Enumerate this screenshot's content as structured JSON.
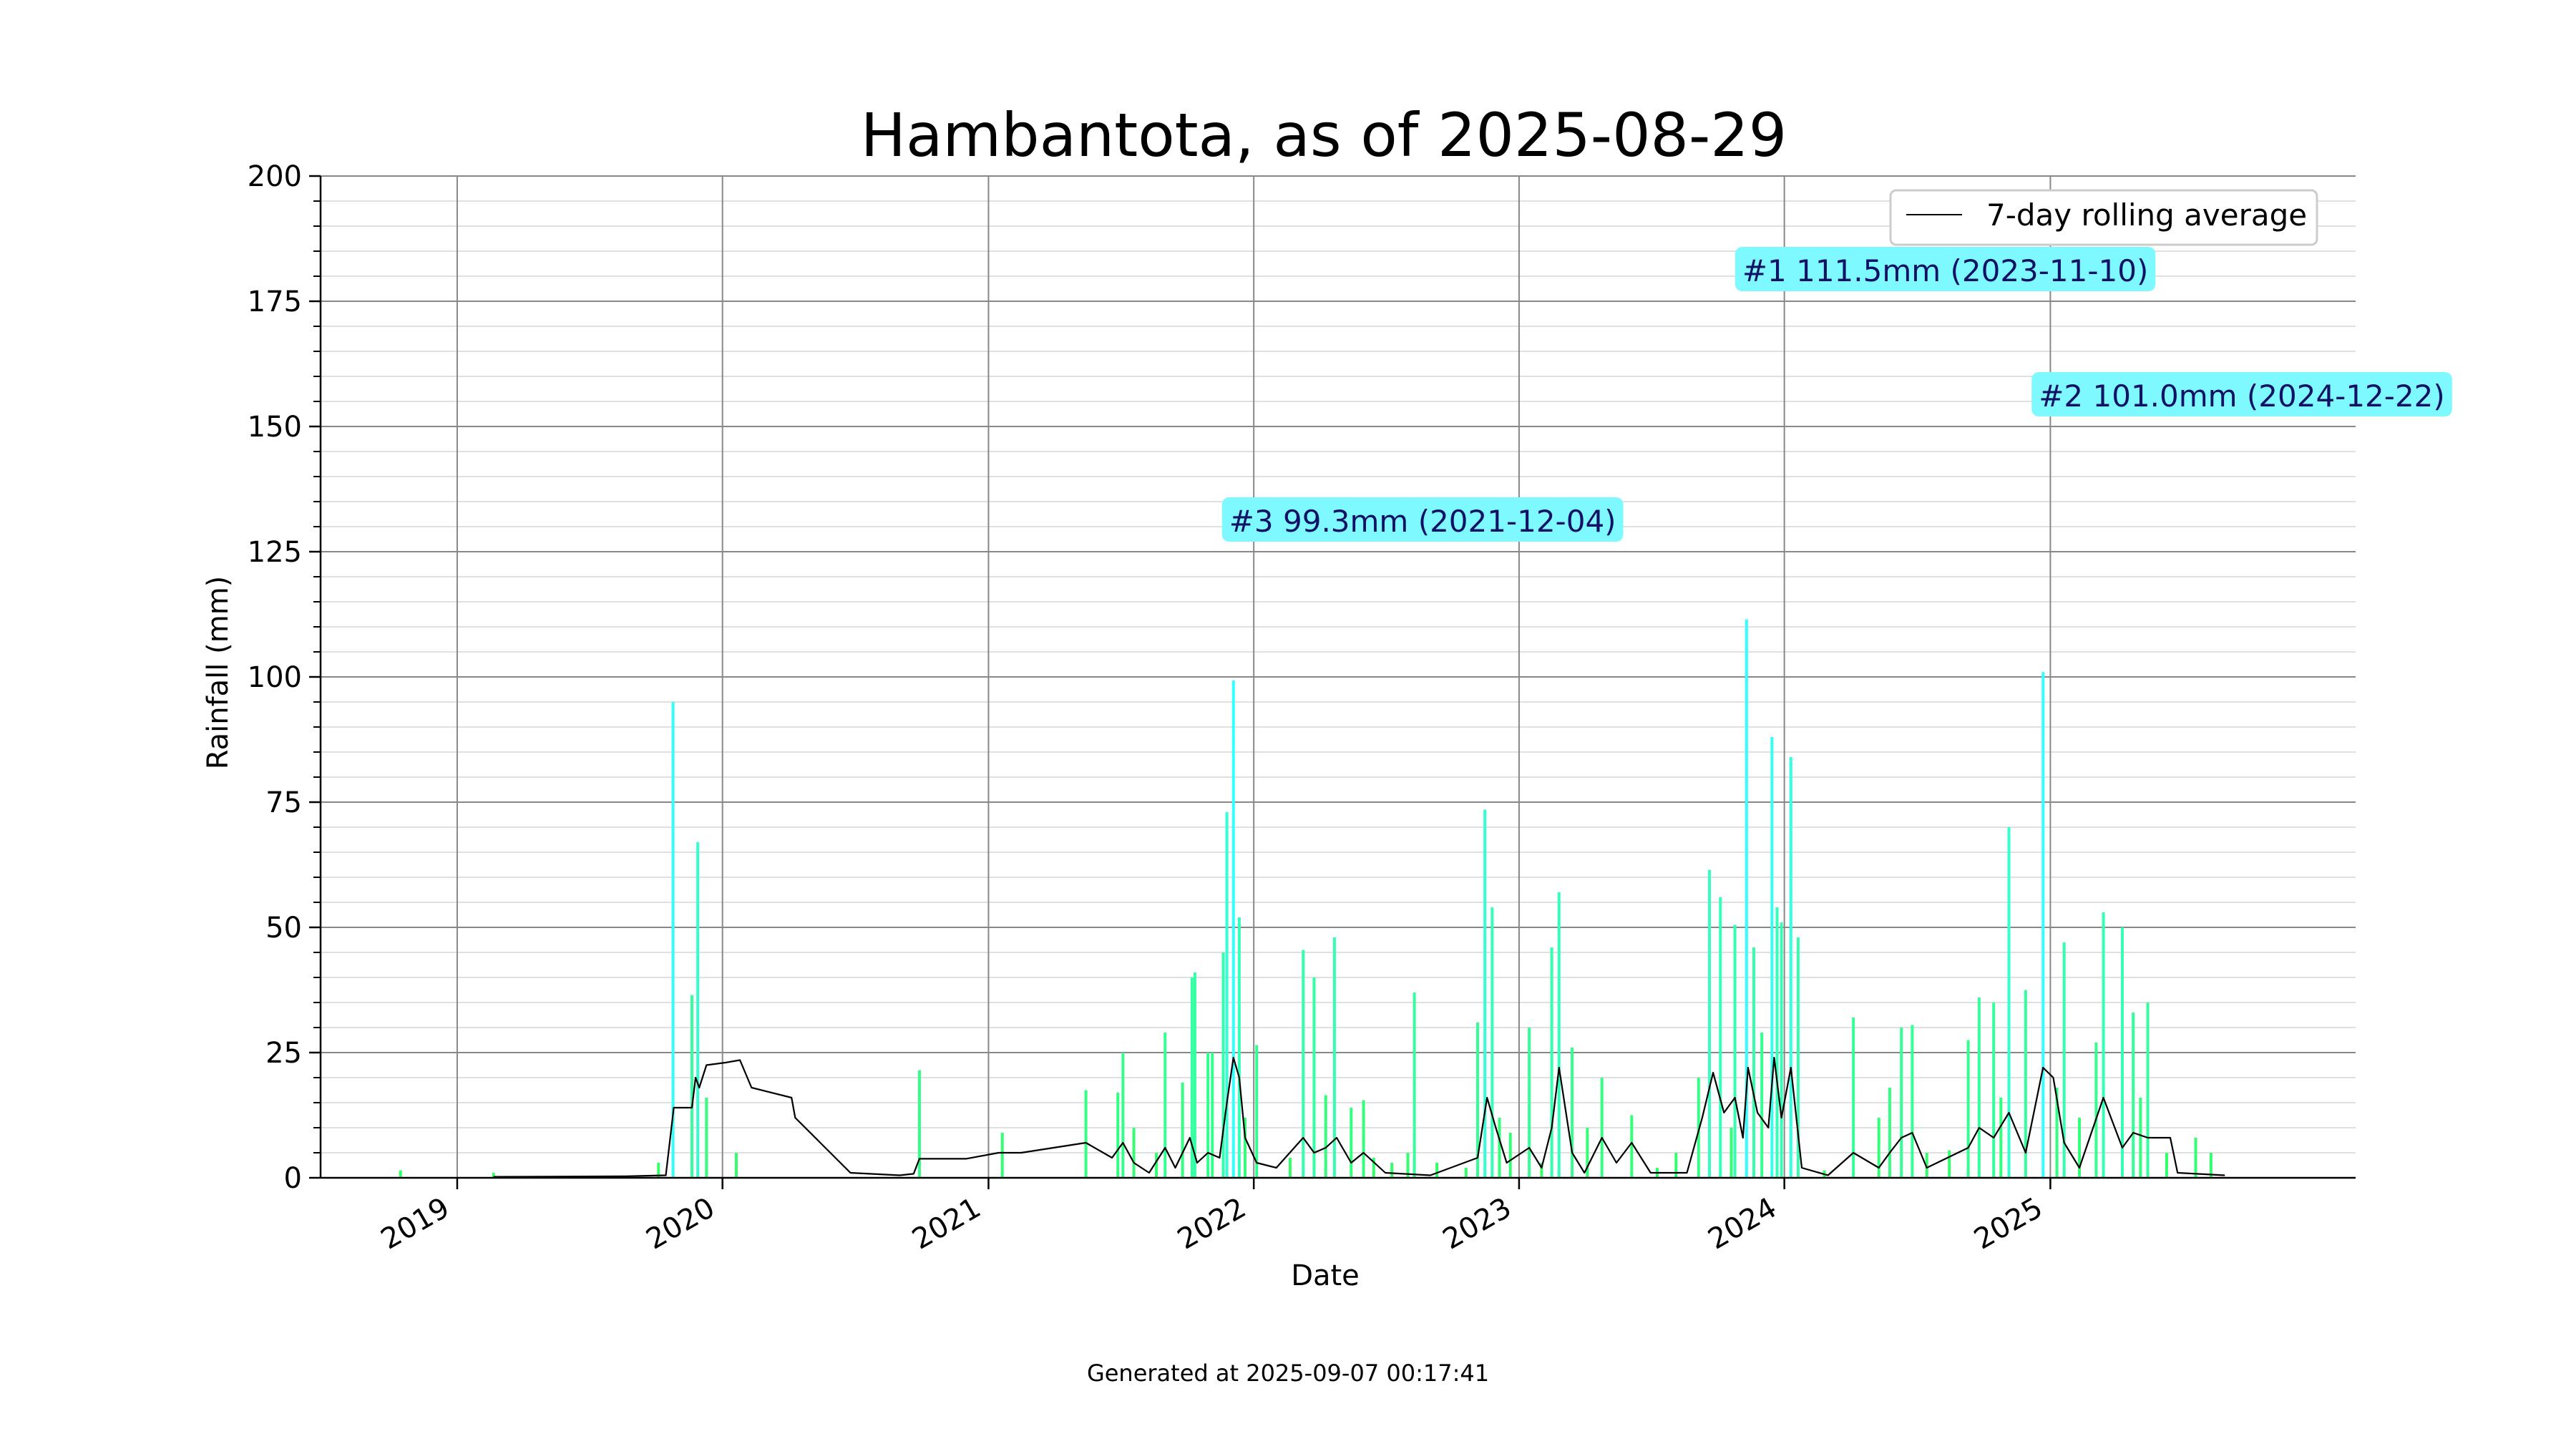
{
  "footer": {
    "text": "Generated at 2025-09-07 00:17:41"
  },
  "chart_data": {
    "type": "bar",
    "title": "Hambantota, as of 2025-08-29",
    "xlabel": "Date",
    "ylabel": "Rainfall (mm)",
    "ylim": [
      0,
      200
    ],
    "xlim": [
      "2018-06-27",
      "2026-02-25"
    ],
    "yticks": [
      0,
      25,
      50,
      75,
      100,
      125,
      150,
      175,
      200
    ],
    "xticks": [
      "2019-01-01",
      "2020-01-01",
      "2021-01-01",
      "2022-01-01",
      "2023-01-01",
      "2024-01-01",
      "2025-01-01"
    ],
    "xtick_labels": [
      "2019",
      "2020",
      "2021",
      "2022",
      "2023",
      "2024",
      "2025"
    ],
    "grid": true,
    "legend": {
      "placement": "top-right",
      "entries": [
        "7-day rolling average"
      ]
    },
    "colors": {
      "bar_low": "#33ff66",
      "bar_high": "#33ffff",
      "rolling": "#000000",
      "annotation_bg": "#7df9ff",
      "annotation_text": "#111166",
      "grid_major": "#888888",
      "grid_minor": "#e0e0e0"
    },
    "daily_rainfall": [
      [
        "2018-10-15",
        1.5
      ],
      [
        "2019-02-20",
        1.0
      ],
      [
        "2019-10-05",
        3.0
      ],
      [
        "2019-10-25",
        95.0
      ],
      [
        "2019-11-20",
        36.5
      ],
      [
        "2019-11-28",
        67.0
      ],
      [
        "2019-12-10",
        16.0
      ],
      [
        "2020-01-20",
        5.0
      ],
      [
        "2020-09-28",
        21.5
      ],
      [
        "2021-01-20",
        9.0
      ],
      [
        "2021-05-15",
        17.5
      ],
      [
        "2021-06-28",
        17.0
      ],
      [
        "2021-07-05",
        25.0
      ],
      [
        "2021-07-20",
        10.0
      ],
      [
        "2021-08-20",
        5.0
      ],
      [
        "2021-09-01",
        29.0
      ],
      [
        "2021-09-25",
        19.0
      ],
      [
        "2021-10-08",
        40.0
      ],
      [
        "2021-10-12",
        41.0
      ],
      [
        "2021-10-30",
        25.0
      ],
      [
        "2021-11-05",
        25.0
      ],
      [
        "2021-11-20",
        45.0
      ],
      [
        "2021-11-25",
        73.0
      ],
      [
        "2021-12-04",
        99.3
      ],
      [
        "2021-12-12",
        52.0
      ],
      [
        "2021-12-20",
        12.0
      ],
      [
        "2022-01-05",
        26.5
      ],
      [
        "2022-02-20",
        4.0
      ],
      [
        "2022-03-10",
        45.5
      ],
      [
        "2022-03-25",
        40.0
      ],
      [
        "2022-04-10",
        16.5
      ],
      [
        "2022-04-22",
        48.0
      ],
      [
        "2022-05-15",
        14.0
      ],
      [
        "2022-06-01",
        15.5
      ],
      [
        "2022-06-15",
        4.0
      ],
      [
        "2022-07-10",
        3.0
      ],
      [
        "2022-08-01",
        5.0
      ],
      [
        "2022-08-10",
        37.0
      ],
      [
        "2022-09-10",
        3.0
      ],
      [
        "2022-10-20",
        2.0
      ],
      [
        "2022-11-05",
        31.0
      ],
      [
        "2022-11-15",
        73.5
      ],
      [
        "2022-11-25",
        54.0
      ],
      [
        "2022-12-05",
        12.0
      ],
      [
        "2022-12-20",
        9.0
      ],
      [
        "2023-01-15",
        30.0
      ],
      [
        "2023-02-01",
        3.0
      ],
      [
        "2023-02-15",
        46.0
      ],
      [
        "2023-02-25",
        57.0
      ],
      [
        "2023-03-15",
        26.0
      ],
      [
        "2023-04-05",
        10.0
      ],
      [
        "2023-04-25",
        20.0
      ],
      [
        "2023-06-05",
        12.5
      ],
      [
        "2023-07-10",
        2.0
      ],
      [
        "2023-08-05",
        5.0
      ],
      [
        "2023-09-05",
        20.0
      ],
      [
        "2023-09-20",
        61.5
      ],
      [
        "2023-10-05",
        56.0
      ],
      [
        "2023-10-20",
        10.0
      ],
      [
        "2023-10-25",
        50.5
      ],
      [
        "2023-11-10",
        111.5
      ],
      [
        "2023-11-20",
        46.0
      ],
      [
        "2023-12-01",
        29.0
      ],
      [
        "2023-12-15",
        88.0
      ],
      [
        "2023-12-22",
        54.0
      ],
      [
        "2023-12-28",
        51.0
      ],
      [
        "2024-01-10",
        84.0
      ],
      [
        "2024-01-20",
        48.0
      ],
      [
        "2024-02-25",
        1.5
      ],
      [
        "2024-04-05",
        32.0
      ],
      [
        "2024-05-10",
        12.0
      ],
      [
        "2024-05-25",
        18.0
      ],
      [
        "2024-06-10",
        30.0
      ],
      [
        "2024-06-25",
        30.5
      ],
      [
        "2024-07-15",
        5.0
      ],
      [
        "2024-08-15",
        5.5
      ],
      [
        "2024-09-10",
        27.5
      ],
      [
        "2024-09-25",
        36.0
      ],
      [
        "2024-10-15",
        35.0
      ],
      [
        "2024-10-25",
        16.0
      ],
      [
        "2024-11-05",
        70.0
      ],
      [
        "2024-11-28",
        37.5
      ],
      [
        "2024-12-22",
        101.0
      ],
      [
        "2025-01-10",
        18.0
      ],
      [
        "2025-01-20",
        47.0
      ],
      [
        "2025-02-10",
        12.0
      ],
      [
        "2025-03-05",
        27.0
      ],
      [
        "2025-03-15",
        53.0
      ],
      [
        "2025-04-10",
        50.0
      ],
      [
        "2025-04-25",
        33.0
      ],
      [
        "2025-05-05",
        16.0
      ],
      [
        "2025-05-15",
        35.0
      ],
      [
        "2025-06-10",
        5.0
      ],
      [
        "2025-07-20",
        8.0
      ],
      [
        "2025-08-10",
        5.0
      ]
    ],
    "rolling_average": [
      [
        "2019-02-20",
        0.2
      ],
      [
        "2019-08-20",
        0.3
      ],
      [
        "2019-10-15",
        0.5
      ],
      [
        "2019-10-26",
        14.0
      ],
      [
        "2019-11-20",
        14.0
      ],
      [
        "2019-11-25",
        20.0
      ],
      [
        "2019-11-30",
        18.0
      ],
      [
        "2019-12-10",
        22.5
      ],
      [
        "2020-01-05",
        23.0
      ],
      [
        "2020-01-25",
        23.5
      ],
      [
        "2020-02-10",
        18.0
      ],
      [
        "2020-04-05",
        16.0
      ],
      [
        "2020-04-10",
        12.0
      ],
      [
        "2020-06-25",
        1.0
      ],
      [
        "2020-09-01",
        0.5
      ],
      [
        "2020-09-20",
        0.8
      ],
      [
        "2020-09-28",
        3.8
      ],
      [
        "2020-12-01",
        3.8
      ],
      [
        "2021-01-15",
        5.0
      ],
      [
        "2021-02-15",
        5.0
      ],
      [
        "2021-05-15",
        7.0
      ],
      [
        "2021-06-20",
        4.0
      ],
      [
        "2021-07-05",
        7.0
      ],
      [
        "2021-07-20",
        3.0
      ],
      [
        "2021-08-10",
        1.0
      ],
      [
        "2021-09-01",
        6.0
      ],
      [
        "2021-09-15",
        2.0
      ],
      [
        "2021-10-05",
        8.0
      ],
      [
        "2021-10-15",
        3.0
      ],
      [
        "2021-10-30",
        5.0
      ],
      [
        "2021-11-15",
        4.0
      ],
      [
        "2021-11-25",
        15.0
      ],
      [
        "2021-12-04",
        24.0
      ],
      [
        "2021-12-12",
        20.0
      ],
      [
        "2021-12-20",
        8.0
      ],
      [
        "2022-01-05",
        3.0
      ],
      [
        "2022-02-01",
        2.0
      ],
      [
        "2022-03-10",
        8.0
      ],
      [
        "2022-03-25",
        5.0
      ],
      [
        "2022-04-10",
        6.0
      ],
      [
        "2022-04-25",
        8.0
      ],
      [
        "2022-05-15",
        3.0
      ],
      [
        "2022-06-01",
        5.0
      ],
      [
        "2022-07-01",
        1.0
      ],
      [
        "2022-09-01",
        0.5
      ],
      [
        "2022-11-05",
        4.0
      ],
      [
        "2022-11-18",
        16.0
      ],
      [
        "2022-11-30",
        10.0
      ],
      [
        "2022-12-15",
        3.0
      ],
      [
        "2023-01-15",
        6.0
      ],
      [
        "2023-02-01",
        2.0
      ],
      [
        "2023-02-15",
        10.0
      ],
      [
        "2023-02-25",
        22.0
      ],
      [
        "2023-03-15",
        5.0
      ],
      [
        "2023-04-01",
        1.0
      ],
      [
        "2023-04-25",
        8.0
      ],
      [
        "2023-05-15",
        3.0
      ],
      [
        "2023-06-05",
        7.0
      ],
      [
        "2023-07-01",
        1.0
      ],
      [
        "2023-08-20",
        1.0
      ],
      [
        "2023-09-10",
        12.0
      ],
      [
        "2023-09-25",
        21.0
      ],
      [
        "2023-10-10",
        13.0
      ],
      [
        "2023-10-25",
        16.0
      ],
      [
        "2023-11-05",
        8.0
      ],
      [
        "2023-11-12",
        22.0
      ],
      [
        "2023-11-25",
        13.0
      ],
      [
        "2023-12-10",
        10.0
      ],
      [
        "2023-12-18",
        24.0
      ],
      [
        "2023-12-28",
        12.0
      ],
      [
        "2024-01-10",
        22.0
      ],
      [
        "2024-01-25",
        2.0
      ],
      [
        "2024-03-01",
        0.5
      ],
      [
        "2024-04-05",
        5.0
      ],
      [
        "2024-05-10",
        2.0
      ],
      [
        "2024-05-25",
        5.0
      ],
      [
        "2024-06-10",
        8.0
      ],
      [
        "2024-06-25",
        9.0
      ],
      [
        "2024-07-15",
        2.0
      ],
      [
        "2024-09-10",
        6.0
      ],
      [
        "2024-09-25",
        10.0
      ],
      [
        "2024-10-15",
        8.0
      ],
      [
        "2024-11-05",
        13.0
      ],
      [
        "2024-11-28",
        5.0
      ],
      [
        "2024-12-22",
        22.0
      ],
      [
        "2025-01-05",
        20.0
      ],
      [
        "2025-01-20",
        7.0
      ],
      [
        "2025-02-10",
        2.0
      ],
      [
        "2025-03-15",
        16.0
      ],
      [
        "2025-04-10",
        6.0
      ],
      [
        "2025-04-25",
        9.0
      ],
      [
        "2025-05-15",
        8.0
      ],
      [
        "2025-06-15",
        8.0
      ],
      [
        "2025-06-25",
        1.0
      ],
      [
        "2025-08-29",
        0.5
      ]
    ],
    "annotations": [
      {
        "label": "#1 111.5mm (2023-11-10)",
        "date": "2023-11-10",
        "y": 181
      },
      {
        "label": "#2 101.0mm (2024-12-22)",
        "date": "2024-12-22",
        "y": 156
      },
      {
        "label": "#3 99.3mm (2021-12-04)",
        "date": "2021-12-04",
        "y": 131
      }
    ]
  }
}
